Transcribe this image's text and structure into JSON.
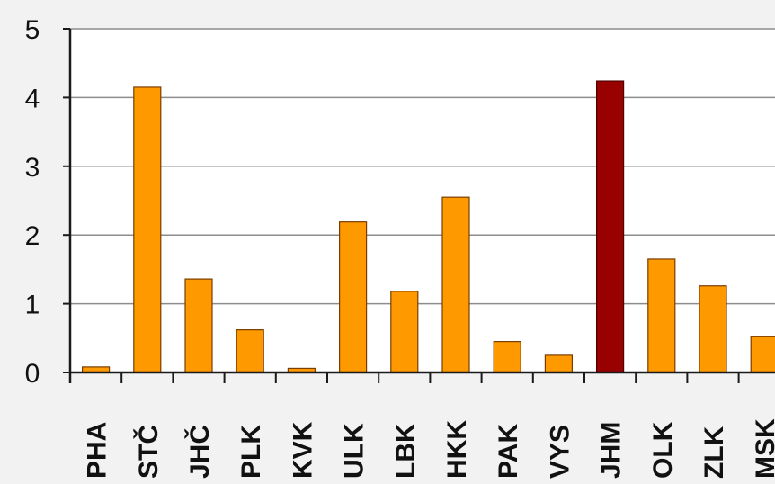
{
  "chart_data": {
    "type": "bar",
    "title": "",
    "xlabel": "",
    "ylabel": "",
    "categories": [
      "PHA",
      "STČ",
      "JHČ",
      "PLK",
      "KVK",
      "ULK",
      "LBK",
      "HKK",
      "PAK",
      "VYS",
      "JHM",
      "OLK",
      "ZLK",
      "MSK"
    ],
    "values": [
      0.08,
      4.15,
      1.36,
      0.62,
      0.06,
      2.19,
      1.18,
      2.55,
      0.45,
      0.25,
      4.24,
      1.65,
      1.26,
      0.52
    ],
    "ylim": [
      0,
      5
    ],
    "yticks": [
      "0",
      "1",
      "2",
      "3",
      "4",
      "5"
    ],
    "grid": true,
    "highlight_category": "JHM",
    "colors": {
      "bar": "#ff9900",
      "bar_stroke": "#7a3d00",
      "highlight": "#990000",
      "highlight_stroke": "#4d0000",
      "gridline": "#8c8c8c",
      "axis": "#1a1a1a",
      "plot_bg": "#ffffff"
    }
  }
}
